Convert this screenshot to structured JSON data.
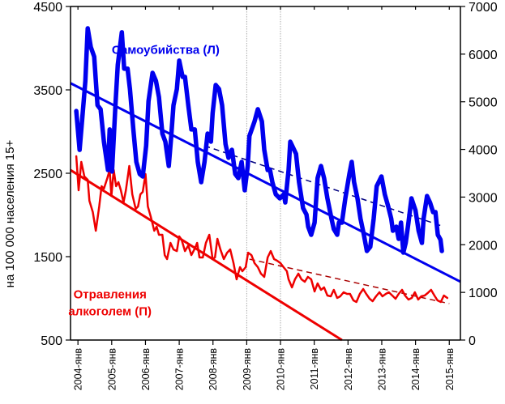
{
  "chart_data": {
    "type": "line",
    "title": "",
    "ylabel_left": "на 100 000 населения 15+",
    "ylabel_right": "",
    "xlabel": "",
    "ylim_left": [
      500,
      4500
    ],
    "ylim_right": [
      0,
      7000
    ],
    "yticks_left": [
      "4500",
      "3500",
      "2500",
      "1500",
      "500"
    ],
    "yticks_left_values": [
      4500,
      3500,
      2500,
      1500,
      500
    ],
    "yticks_right": [
      "7000",
      "6000",
      "5000",
      "4000",
      "3000",
      "2000",
      "1000",
      "0"
    ],
    "yticks_right_values": [
      7000,
      6000,
      5000,
      4000,
      3000,
      2000,
      1000,
      0
    ],
    "xlim": [
      2003.78,
      2015.33
    ],
    "xticks": [
      "2004-янв",
      "2005-янв",
      "2006-янв",
      "2007-янв",
      "2008-янв",
      "2009-янв",
      "2010-янв",
      "2011-янв",
      "2012-янв",
      "2013-янв",
      "2014-янв",
      "2015-янв"
    ],
    "xticks_values": [
      2004,
      2005,
      2006,
      2007,
      2008,
      2009,
      2010,
      2011,
      2012,
      2013,
      2014,
      2015
    ],
    "vertical_reference_lines": [
      2009,
      2010
    ],
    "grid": false,
    "series": [
      {
        "name": "Самоубийства (Л)",
        "axis": "left",
        "color": "#0000ee",
        "style": "thick",
        "x": [
          2003.95,
          2004.05,
          2004.14,
          2004.22,
          2004.29,
          2004.38,
          2004.48,
          2004.58,
          2004.67,
          2004.77,
          2004.89,
          2004.94,
          2005.01,
          2005.11,
          2005.18,
          2005.3,
          2005.37,
          2005.47,
          2005.54,
          2005.64,
          2005.73,
          2005.83,
          2005.92,
          2006.02,
          2006.09,
          2006.21,
          2006.31,
          2006.4,
          2006.5,
          2006.59,
          2006.69,
          2006.76,
          2006.83,
          2006.93,
          2007.0,
          2007.1,
          2007.17,
          2007.27,
          2007.36,
          2007.46,
          2007.55,
          2007.65,
          2007.75,
          2007.84,
          2007.94,
          2007.99,
          2008.08,
          2008.18,
          2008.27,
          2008.37,
          2008.46,
          2008.56,
          2008.66,
          2008.75,
          2008.85,
          2008.94,
          2009.03,
          2009.08,
          2009.23,
          2009.33,
          2009.45,
          2009.52,
          2009.62,
          2009.69,
          2009.76,
          2009.86,
          2009.98,
          2010.1,
          2010.14,
          2010.24,
          2010.29,
          2010.38,
          2010.46,
          2010.55,
          2010.67,
          2010.77,
          2010.82,
          2010.91,
          2011.01,
          2011.1,
          2011.2,
          2011.29,
          2011.39,
          2011.51,
          2011.58,
          2011.68,
          2011.73,
          2011.82,
          2011.92,
          2012.04,
          2012.11,
          2012.18,
          2012.28,
          2012.37,
          2012.47,
          2012.56,
          2012.66,
          2012.76,
          2012.85,
          2012.99,
          2013.09,
          2013.19,
          2013.28,
          2013.33,
          2013.43,
          2013.5,
          2013.57,
          2013.64,
          2013.71,
          2013.79,
          2013.88,
          2014.0,
          2014.09,
          2014.19,
          2014.24,
          2014.34,
          2014.43,
          2014.52,
          2014.59,
          2014.66,
          2014.74,
          2014.78
        ],
        "values": [
          3247,
          2781,
          3218,
          3607,
          4238,
          4014,
          3898,
          3316,
          3268,
          2879,
          2539,
          3025,
          2520,
          3316,
          3801,
          4190,
          3753,
          3753,
          3510,
          3025,
          2636,
          2490,
          2461,
          2830,
          3364,
          3704,
          3607,
          3413,
          2976,
          2879,
          2587,
          2927,
          3315,
          3510,
          3850,
          3655,
          3655,
          3316,
          3025,
          3025,
          2636,
          2393,
          2636,
          2976,
          2879,
          3218,
          3558,
          3510,
          3316,
          2850,
          2685,
          2782,
          2490,
          2442,
          2636,
          2296,
          2587,
          2947,
          3121,
          3268,
          3121,
          2782,
          2539,
          2539,
          2393,
          2248,
          2199,
          2248,
          2150,
          2539,
          2879,
          2801,
          2733,
          2393,
          2082,
          2005,
          1859,
          1762,
          1908,
          2442,
          2587,
          2442,
          2199,
          1957,
          1830,
          1762,
          1908,
          1908,
          2199,
          2490,
          2636,
          2393,
          2199,
          1957,
          1762,
          1568,
          1617,
          1957,
          2345,
          2461,
          2248,
          2102,
          1957,
          1811,
          1859,
          1714,
          1908,
          1549,
          1665,
          1908,
          2199,
          2054,
          1811,
          1665,
          1957,
          2227,
          2150,
          2034,
          2034,
          1762,
          1704,
          1568
        ]
      },
      {
        "name": "Отравления алкоголем (П)",
        "axis": "right",
        "color": "#ee0000",
        "style": "thin",
        "x": [
          2003.95,
          2004.02,
          2004.1,
          2004.19,
          2004.29,
          2004.34,
          2004.44,
          2004.53,
          2004.63,
          2004.7,
          2004.77,
          2004.87,
          2004.94,
          2004.99,
          2005.06,
          2005.13,
          2005.2,
          2005.27,
          2005.35,
          2005.42,
          2005.52,
          2005.61,
          2005.71,
          2005.78,
          2005.85,
          2005.92,
          2006.0,
          2006.07,
          2006.16,
          2006.26,
          2006.33,
          2006.4,
          2006.5,
          2006.57,
          2006.64,
          2006.74,
          2006.83,
          2006.93,
          2007.0,
          2007.07,
          2007.17,
          2007.27,
          2007.36,
          2007.46,
          2007.53,
          2007.6,
          2007.7,
          2007.79,
          2007.89,
          2007.99,
          2008.06,
          2008.13,
          2008.22,
          2008.32,
          2008.42,
          2008.51,
          2008.61,
          2008.7,
          2008.8,
          2008.87,
          2008.97,
          2009.04,
          2009.14,
          2009.23,
          2009.33,
          2009.42,
          2009.52,
          2009.62,
          2009.71,
          2009.81,
          2009.9,
          2010.0,
          2010.09,
          2010.19,
          2010.24,
          2010.34,
          2010.43,
          2010.53,
          2010.62,
          2010.72,
          2010.81,
          2010.91,
          2011.01,
          2011.1,
          2011.2,
          2011.29,
          2011.39,
          2011.49,
          2011.58,
          2011.68,
          2011.77,
          2011.87,
          2011.97,
          2012.06,
          2012.16,
          2012.25,
          2012.35,
          2012.45,
          2012.54,
          2012.64,
          2012.73,
          2012.83,
          2012.93,
          2013.02,
          2013.12,
          2013.21,
          2013.31,
          2013.41,
          2013.5,
          2013.6,
          2013.69,
          2013.79,
          2013.89,
          2013.98,
          2014.08,
          2014.17,
          2014.27,
          2014.36,
          2014.46,
          2014.56,
          2014.65,
          2014.75,
          2014.84,
          2014.94
        ],
        "values": [
          3857,
          3143,
          3738,
          3432,
          3364,
          2922,
          2684,
          2293,
          2803,
          3228,
          3177,
          3398,
          3568,
          3024,
          3568,
          3228,
          3313,
          3143,
          2888,
          3143,
          3653,
          3058,
          2752,
          2803,
          3058,
          3109,
          3483,
          2803,
          2582,
          2293,
          2378,
          2208,
          2208,
          1783,
          1699,
          2038,
          1902,
          1868,
          2174,
          2106,
          1868,
          1987,
          1783,
          1919,
          2038,
          1733,
          1733,
          2038,
          2208,
          1699,
          1733,
          2123,
          1902,
          1699,
          1834,
          1902,
          1614,
          1274,
          1529,
          1444,
          1529,
          1834,
          1783,
          1614,
          1529,
          1393,
          1325,
          1733,
          1868,
          1699,
          1665,
          1614,
          1529,
          1444,
          1274,
          1104,
          1274,
          1393,
          1274,
          1223,
          1325,
          1274,
          1019,
          1189,
          1053,
          1104,
          934,
          917,
          1053,
          883,
          917,
          1002,
          968,
          968,
          832,
          798,
          968,
          1070,
          968,
          866,
          815,
          917,
          1002,
          917,
          968,
          1002,
          934,
          866,
          968,
          1053,
          934,
          849,
          883,
          1002,
          849,
          917,
          934,
          985,
          1053,
          934,
          832,
          798,
          934,
          883
        ]
      }
    ],
    "trend_lines": [
      {
        "name": "blue-trend-solid",
        "axis": "left",
        "color": "#0000ee",
        "dashed": false,
        "from": [
          2003.78,
          3580
        ],
        "to": [
          2015.33,
          1200
        ]
      },
      {
        "name": "blue-trend-dashed",
        "axis": "left",
        "color": "#000080",
        "dashed": true,
        "from": [
          2007.75,
          2830
        ],
        "to": [
          2014.84,
          1860
        ]
      },
      {
        "name": "red-trend-solid",
        "axis": "right",
        "color": "#ee0000",
        "dashed": false,
        "from": [
          2003.78,
          3567
        ],
        "to": [
          2011.82,
          0
        ]
      },
      {
        "name": "red-trend-dashed",
        "axis": "right",
        "color": "#aa0000",
        "dashed": true,
        "from": [
          2009.08,
          1698
        ],
        "to": [
          2015.0,
          764
        ]
      }
    ],
    "annotations": [
      {
        "text": "Самоубийства (Л)",
        "color": "#0000ee",
        "anchor_x": 2006.6,
        "anchor_y_left": 3930
      },
      {
        "text_lines": [
          "Отравления",
          "алкоголем (П)"
        ],
        "color": "#ee0000",
        "anchor_x": 2004.95,
        "anchor_y_left": 1000
      }
    ]
  }
}
